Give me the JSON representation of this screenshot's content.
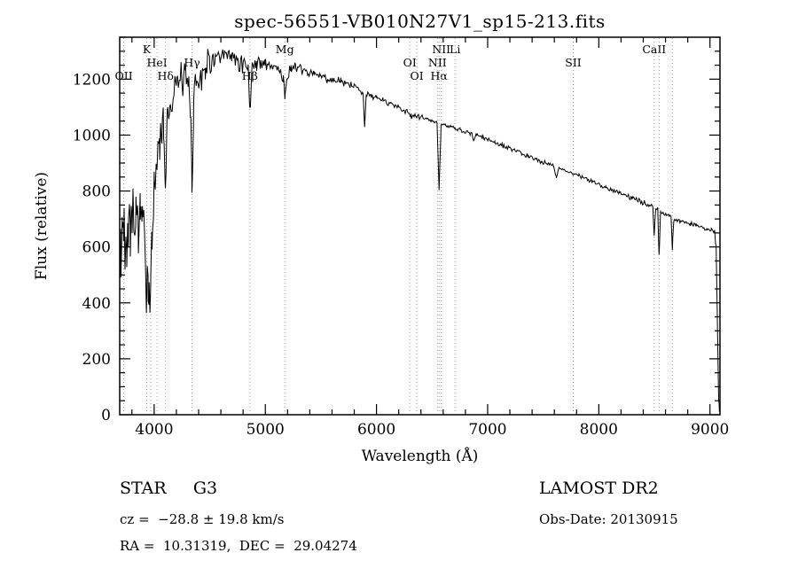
{
  "chart_data": {
    "type": "line",
    "title": "spec-56551-VB010N27V1_sp15-213.fits",
    "xlabel": "Wavelength (Å)",
    "ylabel": "Flux (relative)",
    "xlim": [
      3690,
      9090
    ],
    "ylim": [
      0,
      1350
    ],
    "xticks": [
      4000,
      5000,
      6000,
      7000,
      8000,
      9000
    ],
    "yticks": [
      0,
      200,
      400,
      600,
      800,
      1000,
      1200
    ],
    "grid": false,
    "legend": null,
    "line_color": "#000000",
    "marker_line_color": "#999999",
    "spectral_lines": [
      {
        "label": "OII",
        "wavelength": 3727,
        "row": 3
      },
      {
        "label": "K",
        "wavelength": 3934,
        "row": 1
      },
      {
        "label": "",
        "wavelength": 3968,
        "row": 0
      },
      {
        "label": "HeI",
        "wavelength": 4026,
        "row": 2
      },
      {
        "label": "Hδ",
        "wavelength": 4102,
        "row": 3
      },
      {
        "label": "Hγ",
        "wavelength": 4340,
        "row": 2
      },
      {
        "label": "Hβ",
        "wavelength": 4861,
        "row": 3
      },
      {
        "label": "Mg",
        "wavelength": 5175,
        "row": 1
      },
      {
        "label": "OI",
        "wavelength": 6300,
        "row": 2
      },
      {
        "label": "OI",
        "wavelength": 6363,
        "row": 3
      },
      {
        "label": "NII",
        "wavelength": 6548,
        "row": 2
      },
      {
        "label": "Hα",
        "wavelength": 6563,
        "row": 3
      },
      {
        "label": "NII",
        "wavelength": 6583,
        "row": 1
      },
      {
        "label": "Li",
        "wavelength": 6707,
        "row": 1
      },
      {
        "label": "SII",
        "wavelength": 7770,
        "row": 2
      },
      {
        "label": "CaII",
        "wavelength": 8498,
        "row": 1
      },
      {
        "label": "",
        "wavelength": 8542,
        "row": 0
      },
      {
        "label": "",
        "wavelength": 8662,
        "row": 0
      }
    ],
    "spectrum": {
      "anchors": [
        [
          3690,
          480
        ],
        [
          3700,
          560
        ],
        [
          3712,
          630
        ],
        [
          3725,
          690
        ],
        [
          3738,
          640
        ],
        [
          3752,
          680
        ],
        [
          3768,
          700
        ],
        [
          3785,
          710
        ],
        [
          3800,
          730
        ],
        [
          3818,
          700
        ],
        [
          3836,
          720
        ],
        [
          3855,
          690
        ],
        [
          3875,
          725
        ],
        [
          3895,
          700
        ],
        [
          3915,
          640
        ],
        [
          3933,
          350
        ],
        [
          3945,
          500
        ],
        [
          3955,
          380
        ],
        [
          3968,
          460
        ],
        [
          3981,
          640
        ],
        [
          4000,
          820
        ],
        [
          4026,
          900
        ],
        [
          4048,
          980
        ],
        [
          4070,
          1030
        ],
        [
          4086,
          1050
        ],
        [
          4101,
          800
        ],
        [
          4118,
          1080
        ],
        [
          4140,
          1115
        ],
        [
          4170,
          1145
        ],
        [
          4200,
          1175
        ],
        [
          4240,
          1205
        ],
        [
          4280,
          1195
        ],
        [
          4312,
          1165
        ],
        [
          4326,
          1135
        ],
        [
          4340,
          780
        ],
        [
          4356,
          1145
        ],
        [
          4382,
          1195
        ],
        [
          4420,
          1225
        ],
        [
          4460,
          1245
        ],
        [
          4500,
          1255
        ],
        [
          4550,
          1275
        ],
        [
          4600,
          1265
        ],
        [
          4650,
          1285
        ],
        [
          4700,
          1275
        ],
        [
          4750,
          1265
        ],
        [
          4800,
          1260
        ],
        [
          4846,
          1245
        ],
        [
          4861,
          1080
        ],
        [
          4878,
          1240
        ],
        [
          4920,
          1255
        ],
        [
          4960,
          1260
        ],
        [
          5000,
          1255
        ],
        [
          5045,
          1248
        ],
        [
          5090,
          1242
        ],
        [
          5130,
          1238
        ],
        [
          5160,
          1200
        ],
        [
          5176,
          1140
        ],
        [
          5196,
          1208
        ],
        [
          5232,
          1238
        ],
        [
          5272,
          1242
        ],
        [
          5320,
          1232
        ],
        [
          5380,
          1224
        ],
        [
          5440,
          1218
        ],
        [
          5500,
          1210
        ],
        [
          5560,
          1202
        ],
        [
          5620,
          1195
        ],
        [
          5680,
          1188
        ],
        [
          5740,
          1182
        ],
        [
          5800,
          1175
        ],
        [
          5842,
          1166
        ],
        [
          5880,
          1152
        ],
        [
          5893,
          1030
        ],
        [
          5908,
          1146
        ],
        [
          5952,
          1140
        ],
        [
          6000,
          1133
        ],
        [
          6060,
          1124
        ],
        [
          6122,
          1114
        ],
        [
          6184,
          1103
        ],
        [
          6245,
          1090
        ],
        [
          6290,
          1076
        ],
        [
          6312,
          1066
        ],
        [
          6352,
          1070
        ],
        [
          6402,
          1064
        ],
        [
          6452,
          1058
        ],
        [
          6502,
          1052
        ],
        [
          6545,
          1040
        ],
        [
          6563,
          800
        ],
        [
          6581,
          1035
        ],
        [
          6622,
          1038
        ],
        [
          6664,
          1032
        ],
        [
          6707,
          1022
        ],
        [
          6752,
          1018
        ],
        [
          6802,
          1012
        ],
        [
          6858,
          1004
        ],
        [
          6876,
          976
        ],
        [
          6896,
          1000
        ],
        [
          6952,
          993
        ],
        [
          7005,
          984
        ],
        [
          7065,
          974
        ],
        [
          7125,
          964
        ],
        [
          7185,
          954
        ],
        [
          7245,
          944
        ],
        [
          7305,
          934
        ],
        [
          7365,
          924
        ],
        [
          7425,
          914
        ],
        [
          7485,
          905
        ],
        [
          7545,
          898
        ],
        [
          7592,
          893
        ],
        [
          7616,
          852
        ],
        [
          7642,
          880
        ],
        [
          7702,
          874
        ],
        [
          7762,
          864
        ],
        [
          7822,
          854
        ],
        [
          7882,
          844
        ],
        [
          7942,
          834
        ],
        [
          8002,
          824
        ],
        [
          8062,
          814
        ],
        [
          8122,
          804
        ],
        [
          8182,
          794
        ],
        [
          8242,
          784
        ],
        [
          8302,
          774
        ],
        [
          8362,
          764
        ],
        [
          8422,
          754
        ],
        [
          8486,
          744
        ],
        [
          8498,
          640
        ],
        [
          8512,
          738
        ],
        [
          8530,
          732
        ],
        [
          8542,
          568
        ],
        [
          8556,
          728
        ],
        [
          8602,
          718
        ],
        [
          8650,
          708
        ],
        [
          8662,
          598
        ],
        [
          8676,
          700
        ],
        [
          8722,
          694
        ],
        [
          8772,
          688
        ],
        [
          8822,
          682
        ],
        [
          8872,
          676
        ],
        [
          8922,
          671
        ],
        [
          8972,
          666
        ],
        [
          9012,
          661
        ],
        [
          9042,
          654
        ],
        [
          9056,
          596
        ],
        [
          9068,
          300
        ],
        [
          9078,
          60
        ],
        [
          9085,
          6
        ]
      ],
      "noise_regions": [
        {
          "from": 3690,
          "to": 3770,
          "amp": 230
        },
        {
          "from": 3770,
          "to": 3850,
          "amp": 160
        },
        {
          "from": 3850,
          "to": 3995,
          "amp": 135
        },
        {
          "from": 3995,
          "to": 4150,
          "amp": 95
        },
        {
          "from": 4150,
          "to": 4500,
          "amp": 80
        },
        {
          "from": 4500,
          "to": 4800,
          "amp": 45
        },
        {
          "from": 4800,
          "to": 5300,
          "amp": 32
        },
        {
          "from": 5300,
          "to": 5800,
          "amp": 20
        },
        {
          "from": 5800,
          "to": 6400,
          "amp": 13
        },
        {
          "from": 6400,
          "to": 7200,
          "amp": 10
        },
        {
          "from": 7200,
          "to": 8200,
          "amp": 9
        },
        {
          "from": 8200,
          "to": 9100,
          "amp": 11
        }
      ]
    },
    "annotations": {
      "classification": "STAR     G3",
      "survey": "LAMOST DR2",
      "cz": "cz =  −28.8 ± 19.8 km/s",
      "obs_date": "Obs-Date: 20130915",
      "coordinates": "RA =  10.31319,  DEC =  29.04274"
    }
  }
}
